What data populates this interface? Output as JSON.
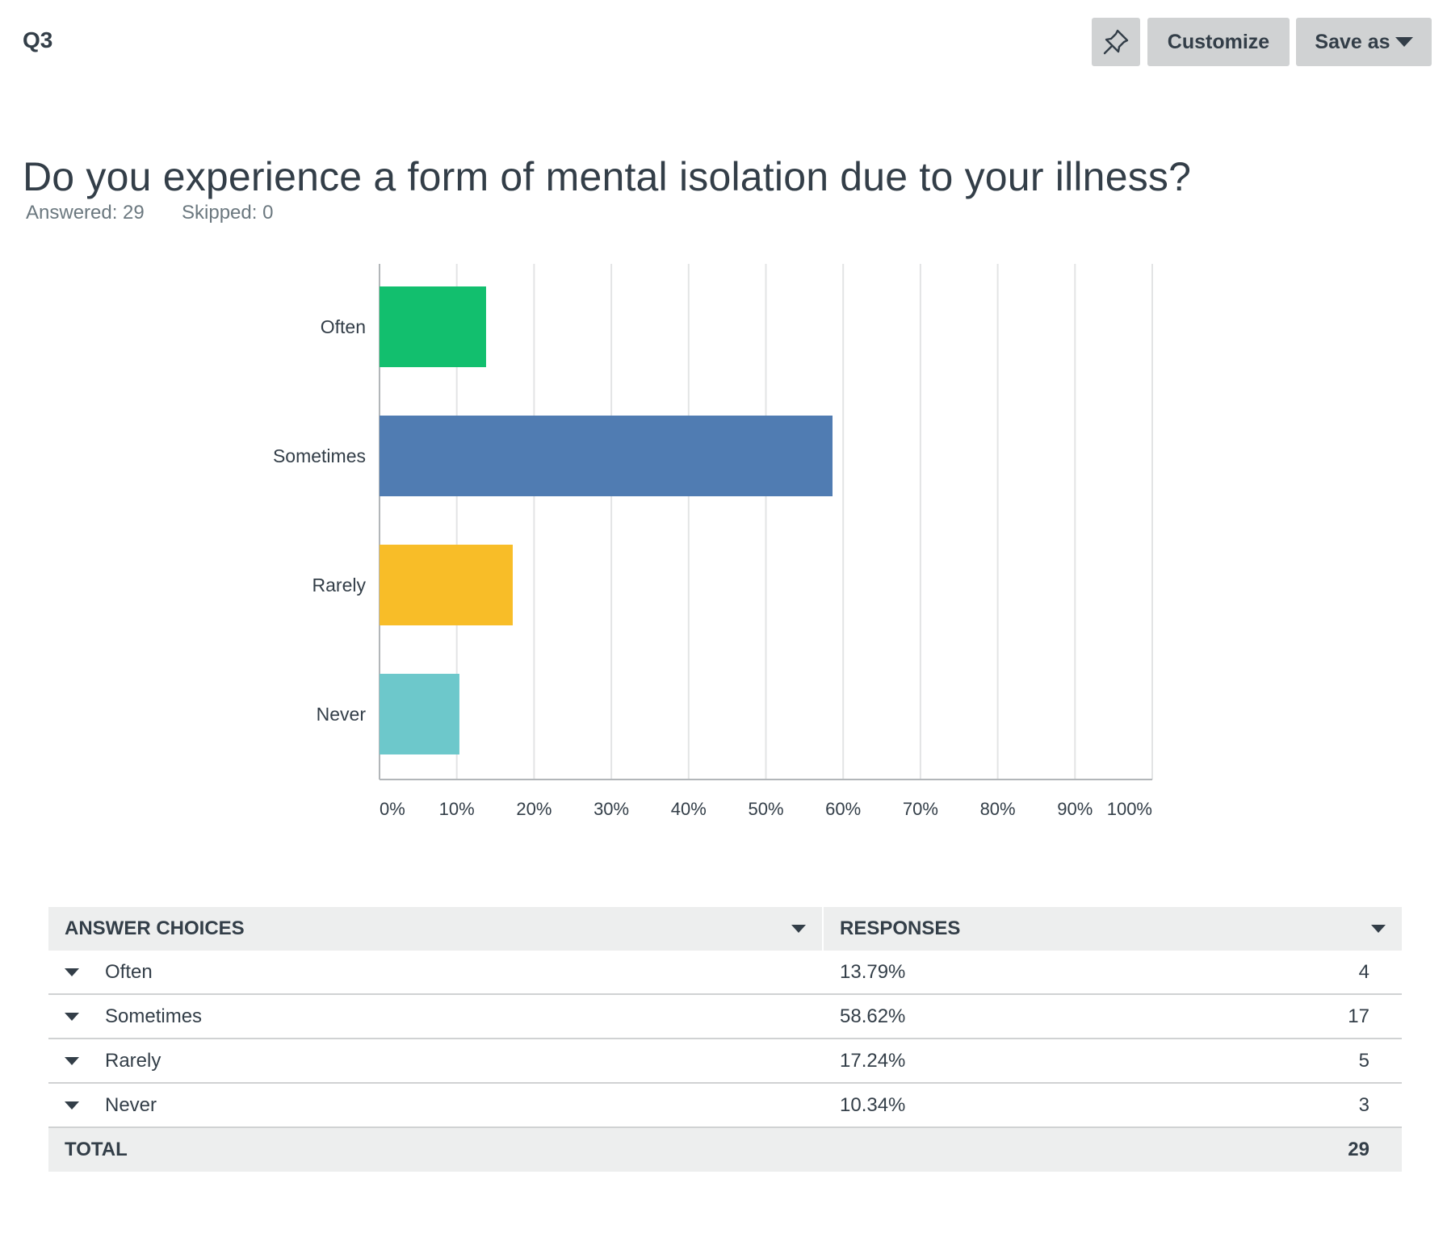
{
  "header": {
    "question_number": "Q3",
    "customize_label": "Customize",
    "save_as_label": "Save as"
  },
  "question": {
    "title": "Do you experience a form of mental isolation due to your illness?",
    "answered": "Answered: 29",
    "skipped": "Skipped: 0"
  },
  "colors": {
    "often": "#12bf6e",
    "sometimes": "#507cb2",
    "rarely": "#f8bd28",
    "never": "#6dc8cb",
    "grid": "#e3e4e5",
    "axis": "#b2b6b9"
  },
  "chart_data": {
    "type": "bar",
    "orientation": "horizontal",
    "categories": [
      "Often",
      "Sometimes",
      "Rarely",
      "Never"
    ],
    "values": [
      13.79,
      58.62,
      17.24,
      10.34
    ],
    "xlim": [
      0,
      100
    ],
    "xticks": [
      "0%",
      "10%",
      "20%",
      "30%",
      "40%",
      "50%",
      "60%",
      "70%",
      "80%",
      "90%",
      "100%"
    ],
    "grid": true,
    "title": "",
    "xlabel": "",
    "ylabel": ""
  },
  "table": {
    "header_choices": "ANSWER CHOICES",
    "header_responses": "RESPONSES",
    "rows": [
      {
        "choice": "Often",
        "percent": "13.79%",
        "count": "4"
      },
      {
        "choice": "Sometimes",
        "percent": "58.62%",
        "count": "17"
      },
      {
        "choice": "Rarely",
        "percent": "17.24%",
        "count": "5"
      },
      {
        "choice": "Never",
        "percent": "10.34%",
        "count": "3"
      }
    ],
    "total_label": "TOTAL",
    "total_count": "29"
  }
}
